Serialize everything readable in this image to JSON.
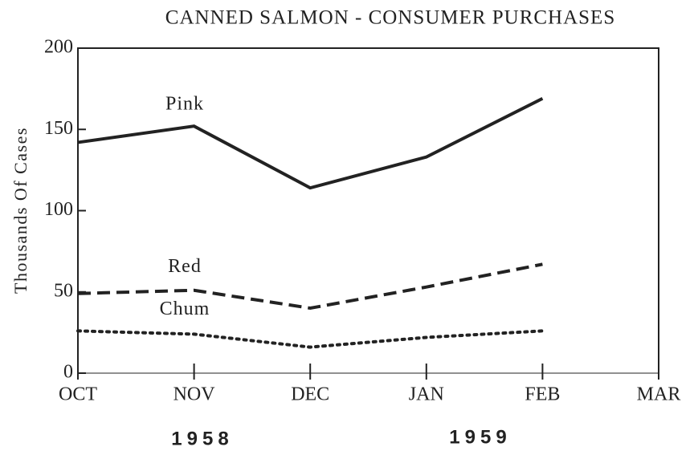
{
  "chart_data": {
    "type": "line",
    "title": "CANNED SALMON - CONSUMER PURCHASES",
    "y_label": "Thousands Of Cases",
    "categories": [
      "OCT",
      "NOV",
      "DEC",
      "JAN",
      "FEB",
      "MAR"
    ],
    "annotations": [
      "1958",
      "1959"
    ],
    "series": [
      {
        "name": "Pink",
        "color": "#222222",
        "dash": "solid",
        "values": [
          142,
          152,
          114,
          133,
          169,
          null
        ]
      },
      {
        "name": "Red",
        "color": "#222222",
        "dash": "dashed",
        "values": [
          49,
          51,
          40,
          53,
          67,
          null
        ]
      },
      {
        "name": "Chum",
        "color": "#222222",
        "dash": "dotted",
        "values": [
          26,
          24,
          16,
          22,
          26,
          null
        ]
      }
    ],
    "ylim": [
      0,
      200
    ],
    "yticks": [
      0,
      50,
      100,
      150,
      200
    ],
    "grid": false
  }
}
